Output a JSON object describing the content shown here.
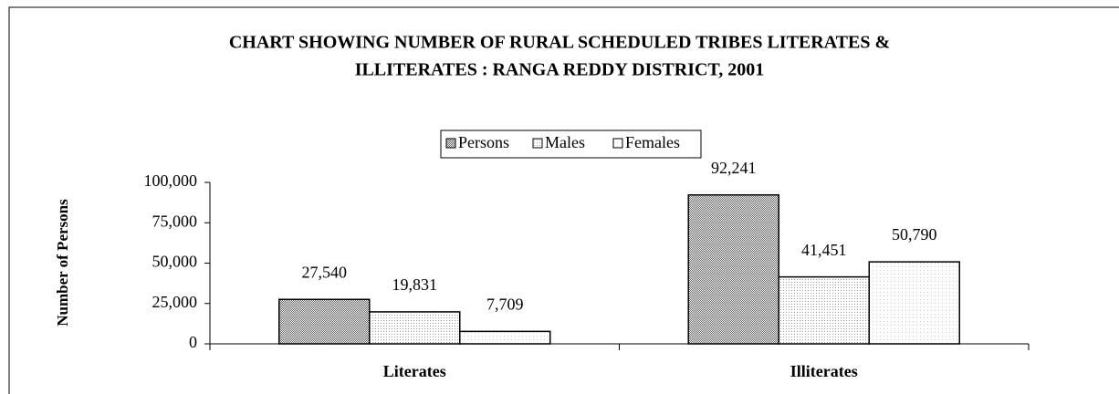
{
  "chart_data": {
    "type": "bar",
    "title": [
      "CHART SHOWING NUMBER OF RURAL SCHEDULED TRIBES LITERATES &",
      "ILLITERATES : RANGA REDDY DISTRICT, 2001"
    ],
    "y_label": "Number of Persons",
    "categories": [
      "Literates",
      "Illiterates"
    ],
    "series": [
      {
        "name": "Persons",
        "color": "#606060",
        "values": [
          27540,
          92241
        ],
        "value_labels": [
          "27,540",
          "92,241"
        ]
      },
      {
        "name": "Males",
        "color": "#9a9a9a",
        "values": [
          19831,
          41451
        ],
        "value_labels": [
          "19,831",
          "41,451"
        ]
      },
      {
        "name": "Females",
        "color": "#c8c8c8",
        "values": [
          7709,
          50790
        ],
        "value_labels": [
          "7,709",
          "50,790"
        ]
      }
    ],
    "ylim": [
      0,
      100000
    ],
    "yticks": [
      0,
      {
        "value": 25000,
        "label": "25,000"
      },
      {
        "value": 50000,
        "label": "50,000"
      },
      {
        "value": 75000,
        "label": "75,000"
      },
      {
        "value": 100000,
        "label": "100,000"
      }
    ],
    "legend": "top"
  }
}
